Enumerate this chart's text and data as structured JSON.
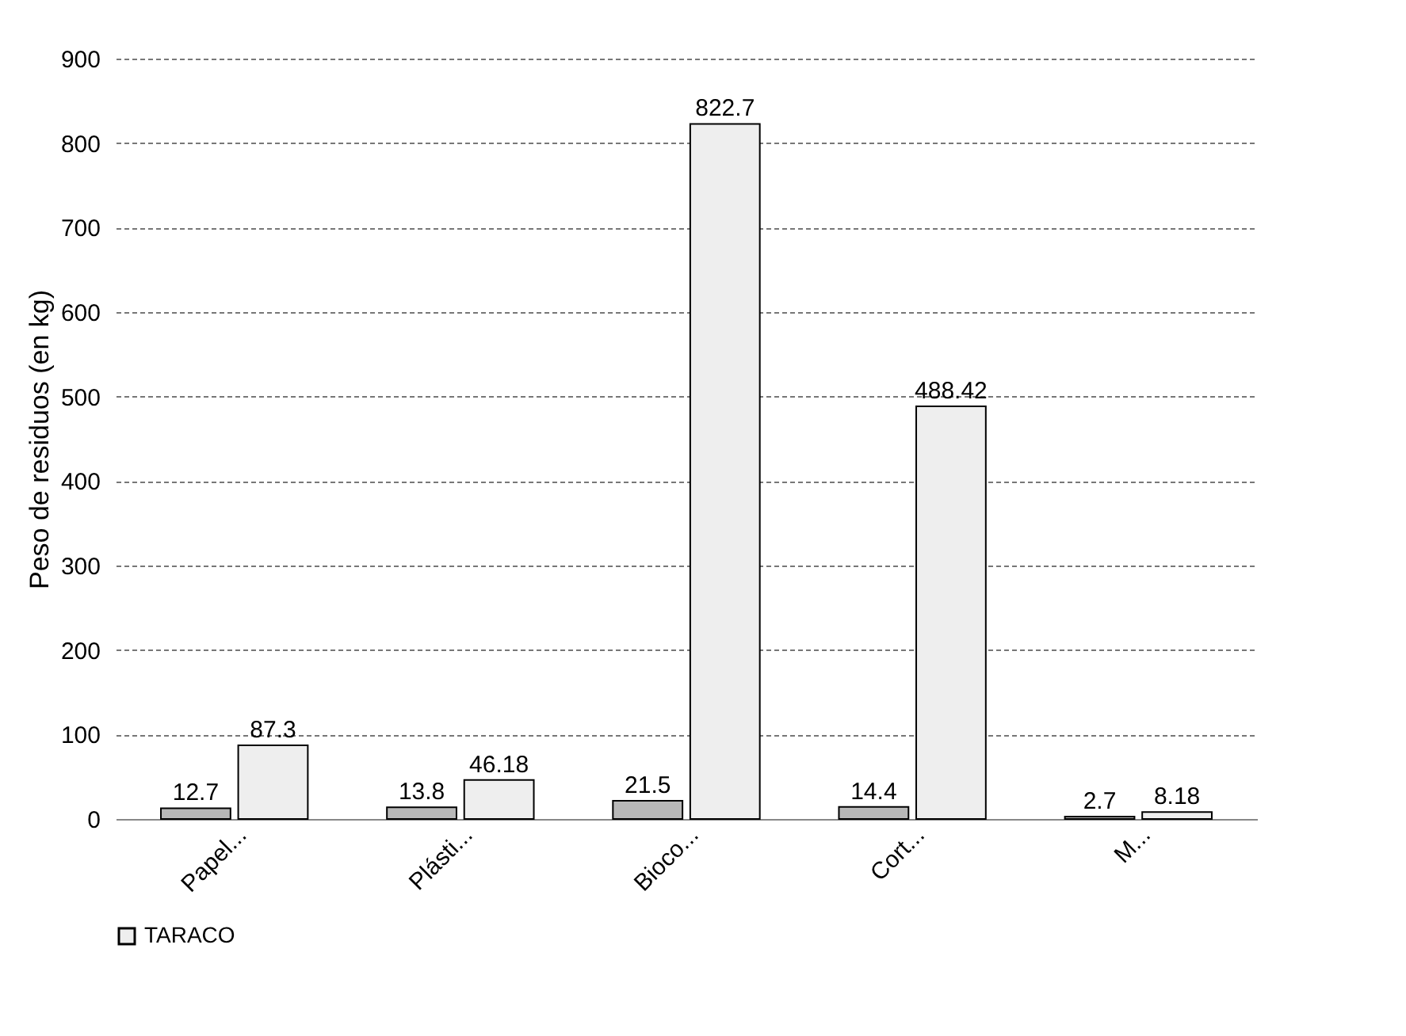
{
  "chart_data": {
    "type": "bar",
    "ylabel": "Peso de residuos (en kg)",
    "categories": [
      "Papel...",
      "Plásti...",
      "Bioco...",
      "Cort...",
      "M..."
    ],
    "series": [
      {
        "color": "#b8b8b8",
        "values": [
          12.7,
          13.8,
          21.5,
          14.4,
          2.7
        ]
      },
      {
        "name": "TARACO",
        "color": "#eeeeee",
        "values": [
          87.3,
          46.18,
          822.7,
          488.42,
          8.18
        ]
      }
    ],
    "ylim": [
      0,
      900
    ],
    "yticks": [
      0,
      100,
      200,
      300,
      400,
      500,
      600,
      700,
      800,
      900
    ],
    "grid": "y",
    "data_labels": true,
    "legend": "bottom"
  }
}
